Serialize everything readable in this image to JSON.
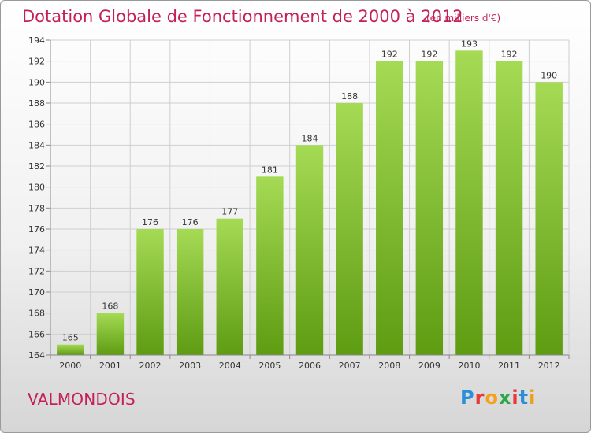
{
  "chart_data": {
    "type": "bar",
    "title": "Dotation Globale de Fonctionnement de 2000 à 2012",
    "subtitle": "(en milliers d'€)",
    "categories": [
      "2000",
      "2001",
      "2002",
      "2003",
      "2004",
      "2005",
      "2006",
      "2007",
      "2008",
      "2009",
      "2010",
      "2011",
      "2012"
    ],
    "values": [
      165,
      168,
      176,
      176,
      177,
      181,
      184,
      188,
      192,
      192,
      193,
      192,
      190
    ],
    "ylim": [
      164,
      194
    ],
    "yticks": [
      164,
      166,
      168,
      170,
      172,
      174,
      176,
      178,
      180,
      182,
      184,
      186,
      188,
      190,
      192,
      194
    ],
    "grid": true,
    "bar_color": "#7cc12e",
    "xlabel": "",
    "ylabel": ""
  },
  "commune": "VALMONDOIS",
  "logo": {
    "letters": [
      "P",
      "r",
      "o",
      "x",
      "i",
      "t",
      "i"
    ]
  },
  "colors": {
    "title": "#c41f5a",
    "grid": "#cfcfcf",
    "bar_light": "#a5da55",
    "bar_dark": "#5e9c12"
  }
}
